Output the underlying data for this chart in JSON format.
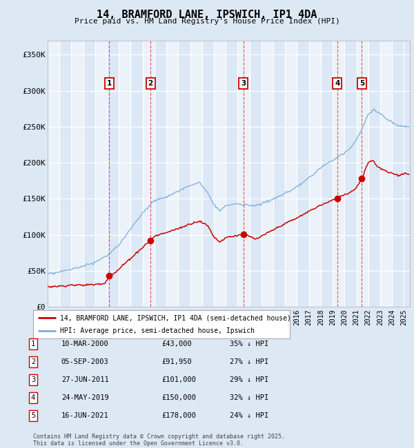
{
  "title": "14, BRAMFORD LANE, IPSWICH, IP1 4DA",
  "subtitle": "Price paid vs. HM Land Registry's House Price Index (HPI)",
  "ylabel_ticks": [
    "£0",
    "£50K",
    "£100K",
    "£150K",
    "£200K",
    "£250K",
    "£300K",
    "£350K"
  ],
  "ytick_values": [
    0,
    50000,
    100000,
    150000,
    200000,
    250000,
    300000,
    350000
  ],
  "ylim": [
    0,
    370000
  ],
  "xlim_start": 1995.0,
  "xlim_end": 2025.5,
  "background_color": "#dde8f5",
  "plot_bg_color": "#dce8f5",
  "grid_color": "#ffffff",
  "sales": [
    {
      "label": "1",
      "year": 2000.19,
      "price": 43000
    },
    {
      "label": "2",
      "year": 2003.67,
      "price": 91950
    },
    {
      "label": "3",
      "year": 2011.49,
      "price": 101000
    },
    {
      "label": "4",
      "year": 2019.39,
      "price": 150000
    },
    {
      "label": "5",
      "year": 2021.46,
      "price": 178000
    }
  ],
  "table_rows": [
    {
      "num": "1",
      "date": "10-MAR-2000",
      "price": "£43,000",
      "hpi": "35% ↓ HPI"
    },
    {
      "num": "2",
      "date": "05-SEP-2003",
      "price": "£91,950",
      "hpi": "27% ↓ HPI"
    },
    {
      "num": "3",
      "date": "27-JUN-2011",
      "price": "£101,000",
      "hpi": "29% ↓ HPI"
    },
    {
      "num": "4",
      "date": "24-MAY-2019",
      "price": "£150,000",
      "hpi": "32% ↓ HPI"
    },
    {
      "num": "5",
      "date": "16-JUN-2021",
      "price": "£178,000",
      "hpi": "24% ↓ HPI"
    }
  ],
  "legend_entries": [
    {
      "label": "14, BRAMFORD LANE, IPSWICH, IP1 4DA (semi-detached house)",
      "color": "#cc0000"
    },
    {
      "label": "HPI: Average price, semi-detached house, Ipswich",
      "color": "#7aaddc"
    }
  ],
  "footer": "Contains HM Land Registry data © Crown copyright and database right 2025.\nThis data is licensed under the Open Government Licence v3.0.",
  "sale_line_color": "#cc0000",
  "hpi_line_color": "#7aaddc",
  "sale_marker_color": "#cc0000",
  "sale_box_color": "#cc0000",
  "vline_color": "#dd4444"
}
